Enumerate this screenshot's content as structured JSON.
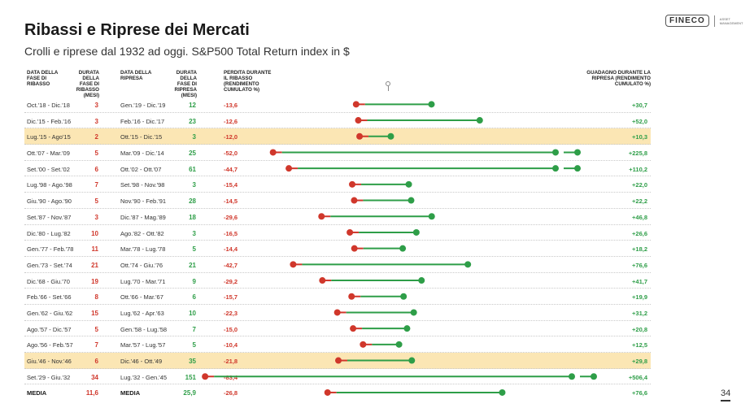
{
  "title": "Ribassi e Riprese dei Mercati",
  "subtitle": "Crolli e riprese dal 1932 ad oggi. S&P500 Total Return index in $",
  "logo": {
    "brand": "FINECO",
    "sub": "ASSET MANAGEMENT"
  },
  "page_number": "34",
  "headers": {
    "data_ribasso": "DATA DELLA FASE DI RIBASSO",
    "durata_ribasso": "DURATA DELLA FASE DI RIBASSO (mesi)",
    "data_ripresa": "DATA DELLA RIPRESA",
    "durata_ripresa": "DURATA DELLA FASE DI RIPRESA (mesi)",
    "perdita": "PERDITA DURANTE IL RIBASSO (rendimento cumulato %)",
    "guadagno": "GUADAGNO DURANTE LA RIPRESA (rendimento cumulato %)"
  },
  "colors": {
    "loss": "#d0372b",
    "gain": "#2e9e48",
    "highlight": "#fbe6b4"
  },
  "chart_data": {
    "type": "table",
    "rows": [
      {
        "ribasso": "Oct.'18 - Dic.'18",
        "mesi_ribasso": "3",
        "ripresa": "Gen.'19 - Dic.'19",
        "mesi_ripresa": "12",
        "perdita": "-13,6",
        "guadagno": "+30,7",
        "loss": -13.6,
        "gain": 30.7,
        "highlight": false
      },
      {
        "ribasso": "Dic.'15 - Feb.'16",
        "mesi_ribasso": "3",
        "ripresa": "Feb.'16 - Dic.'17",
        "mesi_ripresa": "23",
        "perdita": "-12,6",
        "guadagno": "+52,0",
        "loss": -12.6,
        "gain": 52.0,
        "highlight": false
      },
      {
        "ribasso": "Lug.'15 - Ago'15",
        "mesi_ribasso": "2",
        "ripresa": "Ott.'15 - Dic.'15",
        "mesi_ripresa": "3",
        "perdita": "-12,0",
        "guadagno": "+10,3",
        "loss": -12.0,
        "gain": 10.3,
        "highlight": true
      },
      {
        "ribasso": "Ott.'07 - Mar.'09",
        "mesi_ribasso": "5",
        "ripresa": "Mar.'09 - Dic.'14",
        "mesi_ripresa": "25",
        "perdita": "-52,0",
        "guadagno": "+225,8",
        "loss": -52.0,
        "gain": 225.8,
        "highlight": false
      },
      {
        "ribasso": "Set.'00 - Set.'02",
        "mesi_ribasso": "6",
        "ripresa": "Ott.'02 - Ott.'07",
        "mesi_ripresa": "61",
        "perdita": "-44,7",
        "guadagno": "+110,2",
        "loss": -44.7,
        "gain": 110.2,
        "highlight": false
      },
      {
        "ribasso": "Lug.'98 - Ago.'98",
        "mesi_ribasso": "7",
        "ripresa": "Set.'98 - Nov.'98",
        "mesi_ripresa": "3",
        "perdita": "-15,4",
        "guadagno": "+22,0",
        "loss": -15.4,
        "gain": 22.0,
        "highlight": false
      },
      {
        "ribasso": "Giu.'90 - Ago.'90",
        "mesi_ribasso": "5",
        "ripresa": "Nov.'90 - Feb.'91",
        "mesi_ripresa": "28",
        "perdita": "-14,5",
        "guadagno": "+22,2",
        "loss": -14.5,
        "gain": 22.2,
        "highlight": false
      },
      {
        "ribasso": "Set.'87 - Nov.'87",
        "mesi_ribasso": "3",
        "ripresa": "Dic.'87 - Mag.'89",
        "mesi_ripresa": "18",
        "perdita": "-29,6",
        "guadagno": "+46,8",
        "loss": -29.6,
        "gain": 46.8,
        "highlight": false
      },
      {
        "ribasso": "Dic.'80 - Lug.'82",
        "mesi_ribasso": "10",
        "ripresa": "Ago.'82 - Ott.'82",
        "mesi_ripresa": "3",
        "perdita": "-16,5",
        "guadagno": "+26,6",
        "loss": -16.5,
        "gain": 26.6,
        "highlight": false
      },
      {
        "ribasso": "Gen.'77 - Feb.'78",
        "mesi_ribasso": "11",
        "ripresa": "Mar.'78 - Lug.'78",
        "mesi_ripresa": "5",
        "perdita": "-14,4",
        "guadagno": "+18,2",
        "loss": -14.4,
        "gain": 18.2,
        "highlight": false
      },
      {
        "ribasso": "Gen.'73 - Set.'74",
        "mesi_ribasso": "21",
        "ripresa": "Ott.'74 - Giu.'76",
        "mesi_ripresa": "21",
        "perdita": "-42,7",
        "guadagno": "+76,6",
        "loss": -42.7,
        "gain": 76.6,
        "highlight": false
      },
      {
        "ribasso": "Dic.'68 - Giu.'70",
        "mesi_ribasso": "19",
        "ripresa": "Lug.'70 - Mar.'71",
        "mesi_ripresa": "9",
        "perdita": "-29,2",
        "guadagno": "+41,7",
        "loss": -29.2,
        "gain": 41.7,
        "highlight": false
      },
      {
        "ribasso": "Feb.'66 - Set.'66",
        "mesi_ribasso": "8",
        "ripresa": "Ott.'66 - Mar.'67",
        "mesi_ripresa": "6",
        "perdita": "-15,7",
        "guadagno": "+19,9",
        "loss": -15.7,
        "gain": 19.9,
        "highlight": false
      },
      {
        "ribasso": "Gen.'62 - Giu.'62",
        "mesi_ribasso": "15",
        "ripresa": "Lug.'62 - Apr.'63",
        "mesi_ripresa": "10",
        "perdita": "-22,3",
        "guadagno": "+31,2",
        "loss": -22.3,
        "gain": 31.2,
        "highlight": false
      },
      {
        "ribasso": "Ago.'57 - Dic.'57",
        "mesi_ribasso": "5",
        "ripresa": "Gen.'58 - Lug.'58",
        "mesi_ripresa": "7",
        "perdita": "-15,0",
        "guadagno": "+20,8",
        "loss": -15.0,
        "gain": 20.8,
        "highlight": false
      },
      {
        "ribasso": "Ago.'56 - Feb.'57",
        "mesi_ribasso": "7",
        "ripresa": "Mar.'57 - Lug.'57",
        "mesi_ripresa": "5",
        "perdita": "-10,4",
        "guadagno": "+12,5",
        "loss": -10.4,
        "gain": 12.5,
        "highlight": false
      },
      {
        "ribasso": "Giu.'46 - Nov.'46",
        "mesi_ribasso": "6",
        "ripresa": "Dic.'46 - Ott.'49",
        "mesi_ripresa": "35",
        "perdita": "-21,8",
        "guadagno": "+29,8",
        "loss": -21.8,
        "gain": 29.8,
        "highlight": true
      },
      {
        "ribasso": "Set.'29 - Giu.'32",
        "mesi_ribasso": "34",
        "ripresa": "Lug.'32 - Gen.'45",
        "mesi_ripresa": "151",
        "perdita": "-83,4",
        "guadagno": "+506,4",
        "loss": -83.4,
        "gain": 506.4,
        "highlight": false
      }
    ],
    "media": {
      "label": "MEDIA",
      "mesi_ribasso": "11,6",
      "label2": "MEDIA",
      "mesi_ripresa": "25,9",
      "perdita": "-26,8",
      "guadagno": "+76,6",
      "loss": -26.8,
      "gain": 76.6
    }
  }
}
